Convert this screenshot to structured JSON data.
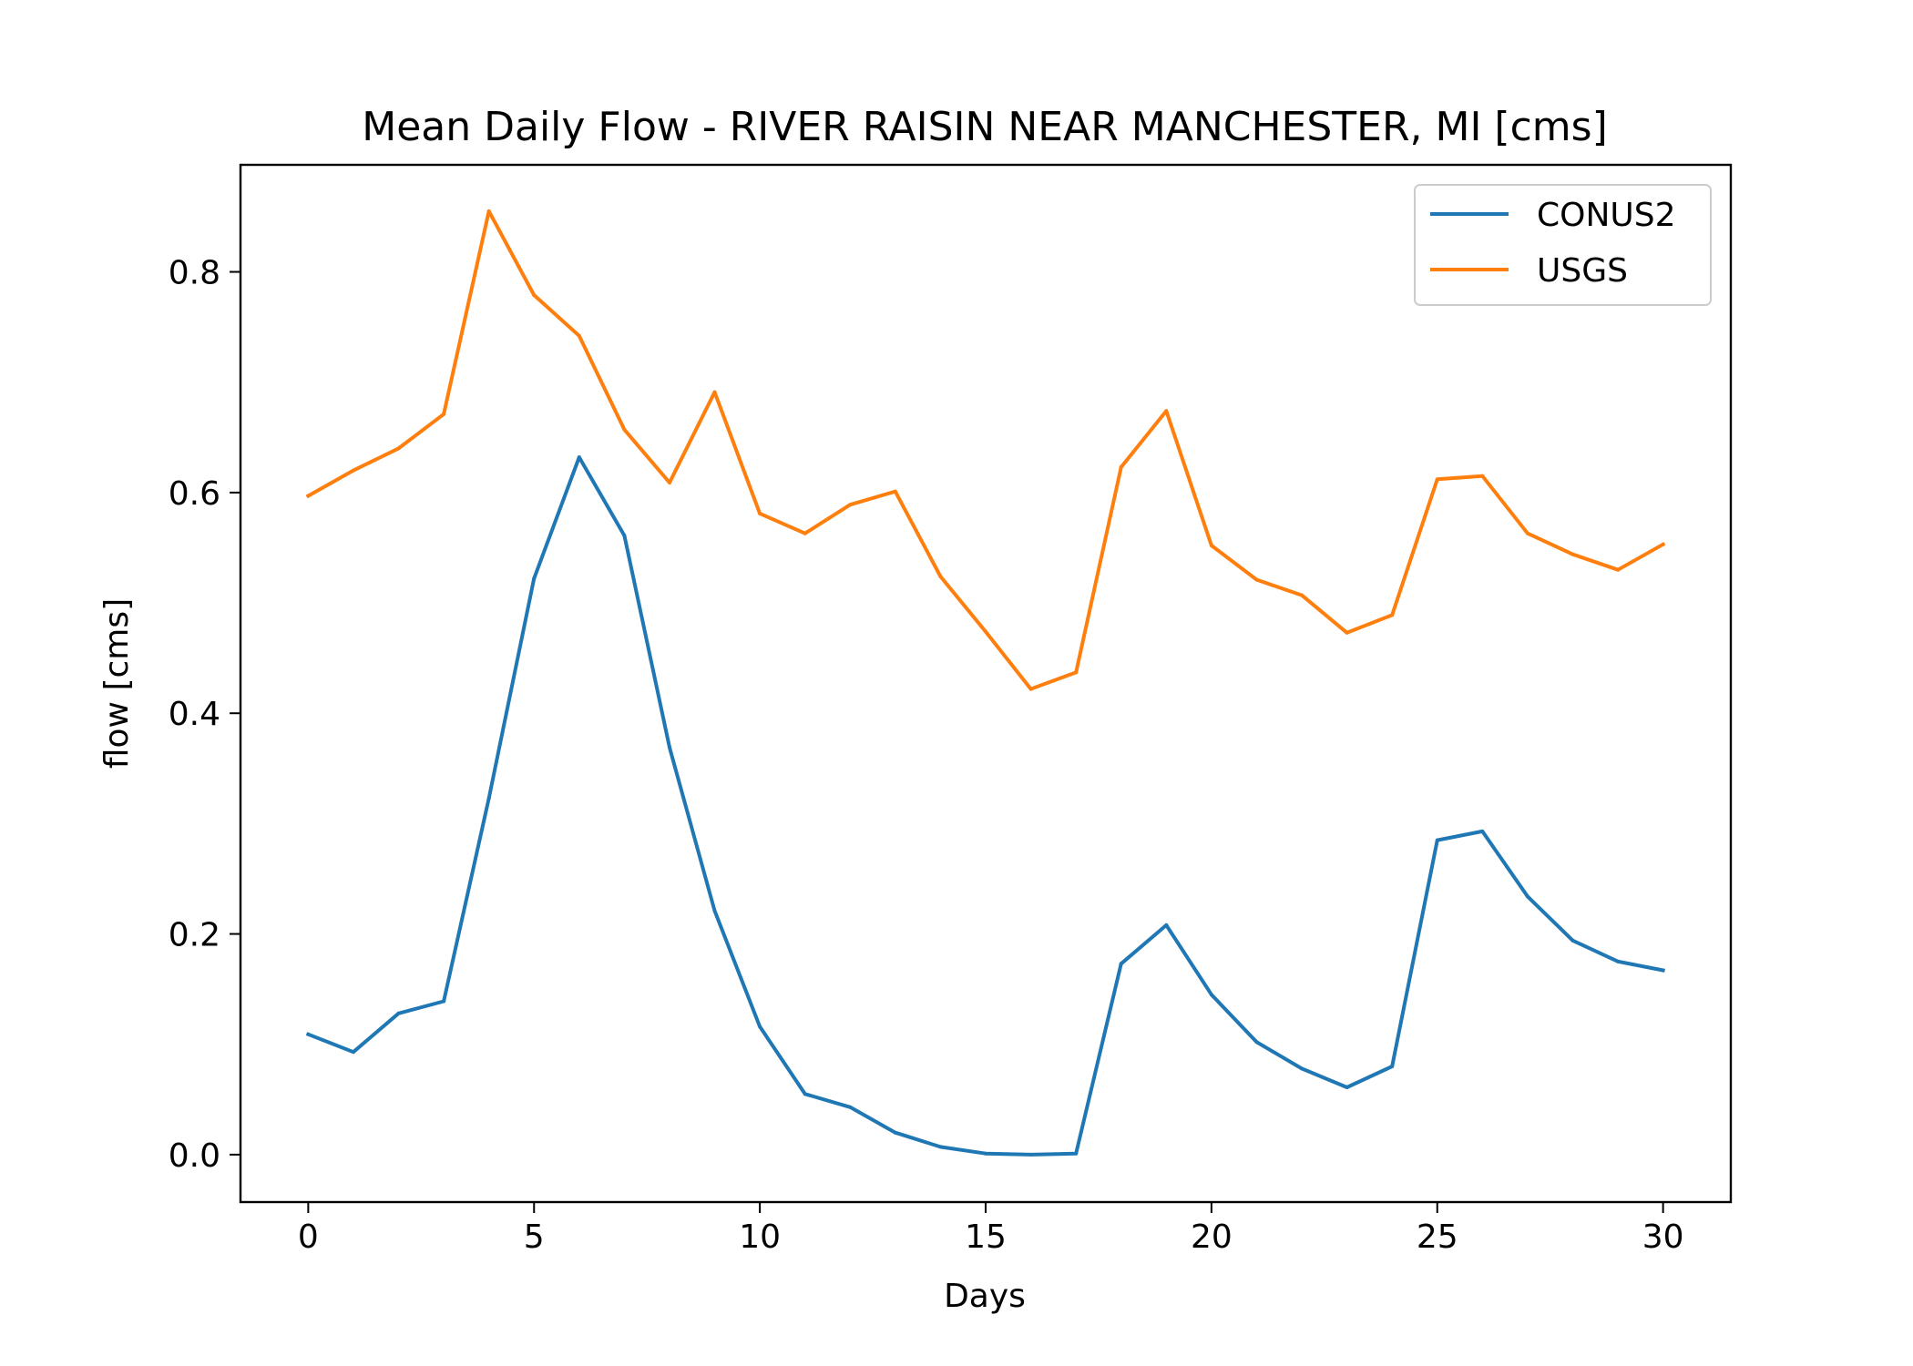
{
  "chart_data": {
    "type": "line",
    "title": "Mean Daily Flow - RIVER RAISIN NEAR MANCHESTER, MI [cms]",
    "xlabel": "Days",
    "ylabel": "flow [cms]",
    "xlim": [
      -1.5,
      31.5
    ],
    "ylim": [
      -0.043,
      0.897
    ],
    "xticks": [
      0,
      5,
      10,
      15,
      20,
      25,
      30
    ],
    "xtick_labels": [
      "0",
      "5",
      "10",
      "15",
      "20",
      "25",
      "30"
    ],
    "yticks": [
      0.0,
      0.2,
      0.4,
      0.6,
      0.8
    ],
    "ytick_labels": [
      "0.0",
      "0.2",
      "0.4",
      "0.6",
      "0.8"
    ],
    "grid": false,
    "legend_position": "top-right",
    "x": [
      0,
      1,
      2,
      3,
      4,
      5,
      6,
      7,
      8,
      9,
      10,
      11,
      12,
      13,
      14,
      15,
      16,
      17,
      18,
      19,
      20,
      21,
      22,
      23,
      24,
      25,
      26,
      27,
      28,
      29,
      30
    ],
    "series": [
      {
        "name": "CONUS2",
        "color": "#1f77b4",
        "values": [
          0.109,
          0.093,
          0.128,
          0.139,
          0.323,
          0.522,
          0.632,
          0.561,
          0.369,
          0.221,
          0.116,
          0.055,
          0.043,
          0.02,
          0.007,
          0.001,
          0.0,
          0.001,
          0.173,
          0.208,
          0.145,
          0.102,
          0.078,
          0.061,
          0.08,
          0.285,
          0.293,
          0.234,
          0.194,
          0.175,
          0.167
        ]
      },
      {
        "name": "USGS",
        "color": "#ff7f0e",
        "values": [
          0.597,
          0.62,
          0.64,
          0.671,
          0.855,
          0.779,
          0.742,
          0.657,
          0.609,
          0.691,
          0.581,
          0.563,
          0.589,
          0.601,
          0.524,
          0.474,
          0.422,
          0.437,
          0.623,
          0.674,
          0.552,
          0.521,
          0.507,
          0.473,
          0.489,
          0.612,
          0.615,
          0.563,
          0.544,
          0.53,
          0.553
        ]
      }
    ]
  }
}
